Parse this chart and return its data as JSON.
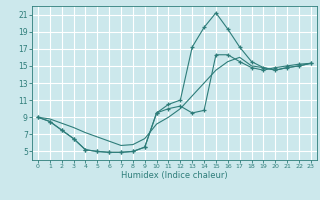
{
  "xlabel": "Humidex (Indice chaleur)",
  "xlim": [
    -0.5,
    23.5
  ],
  "ylim": [
    4,
    22
  ],
  "xticks": [
    0,
    1,
    2,
    3,
    4,
    5,
    6,
    7,
    8,
    9,
    10,
    11,
    12,
    13,
    14,
    15,
    16,
    17,
    18,
    19,
    20,
    21,
    22,
    23
  ],
  "yticks": [
    5,
    7,
    9,
    11,
    13,
    15,
    17,
    19,
    21
  ],
  "bg_color": "#cce8ec",
  "grid_color": "#ffffff",
  "line_color": "#2e7d7a",
  "line1_x": [
    0,
    1,
    2,
    3,
    4,
    5,
    6,
    7,
    8,
    9,
    10,
    11,
    12,
    13,
    14,
    15,
    16,
    17,
    18,
    19,
    20,
    21,
    22,
    23
  ],
  "line1_y": [
    9.0,
    8.5,
    7.5,
    6.5,
    5.2,
    5.0,
    4.9,
    4.9,
    5.0,
    5.5,
    9.5,
    10.0,
    10.3,
    9.5,
    9.8,
    16.3,
    16.3,
    15.5,
    14.8,
    14.5,
    14.8,
    15.0,
    15.2,
    15.3
  ],
  "line2_x": [
    0,
    1,
    2,
    3,
    4,
    5,
    6,
    7,
    8,
    9,
    10,
    11,
    12,
    13,
    14,
    15,
    16,
    17,
    18,
    19,
    20,
    21,
    22,
    23
  ],
  "line2_y": [
    9.0,
    8.5,
    7.5,
    6.5,
    5.2,
    5.0,
    4.9,
    4.9,
    5.0,
    5.5,
    9.5,
    10.5,
    11.0,
    17.2,
    19.5,
    21.2,
    19.3,
    17.2,
    15.5,
    14.8,
    14.5,
    14.8,
    15.0,
    15.3
  ],
  "line3_x": [
    0,
    1,
    2,
    3,
    4,
    5,
    6,
    7,
    8,
    9,
    10,
    11,
    12,
    13,
    14,
    15,
    16,
    17,
    18,
    19,
    20,
    21,
    22,
    23
  ],
  "line3_y": [
    9.0,
    8.8,
    8.3,
    7.8,
    7.2,
    6.7,
    6.2,
    5.7,
    5.8,
    6.5,
    8.2,
    9.0,
    10.0,
    11.5,
    13.0,
    14.5,
    15.5,
    16.0,
    15.0,
    14.8,
    14.5,
    14.8,
    15.0,
    15.3
  ]
}
